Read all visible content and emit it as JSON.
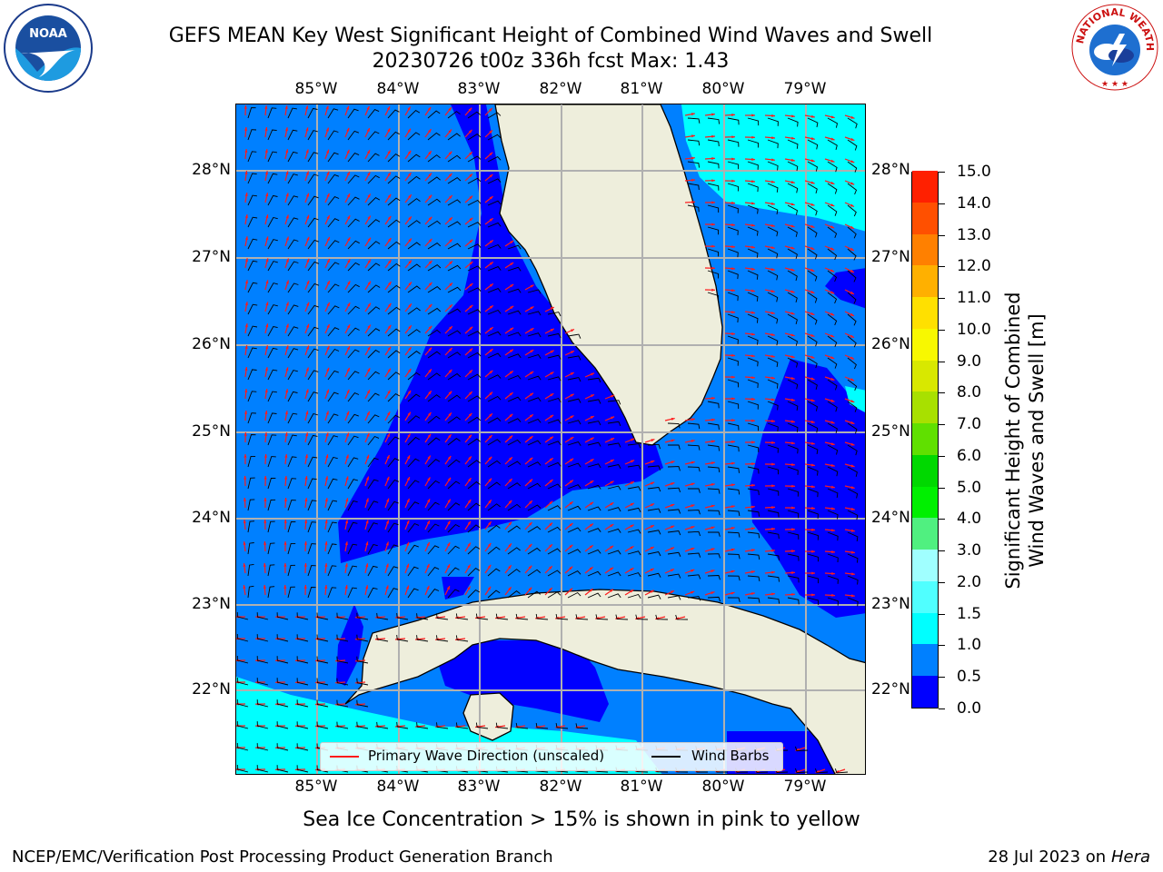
{
  "title": {
    "line1": "GEFS MEAN Key West Significant Height of Combined Wind Waves and Swell",
    "line2": "20230726 t00z 336h fcst   Max: 1.43"
  },
  "logos": {
    "left": {
      "name": "NOAA",
      "ring_text": "NATIONAL OCEANIC AND ATMOSPHERIC ADMINISTRATION",
      "bottom_text": "U.S. DEPARTMENT OF COMMERCE"
    },
    "right": {
      "ring_text": "NATIONAL WEATHER SERVICE"
    }
  },
  "map": {
    "lon_labels": [
      "85°W",
      "84°W",
      "83°W",
      "82°W",
      "81°W",
      "80°W",
      "79°W"
    ],
    "lat_labels": [
      "28°N",
      "27°N",
      "26°N",
      "25°N",
      "24°N",
      "23°N",
      "22°N"
    ],
    "colors": {
      "land": "#eeeedc",
      "gridline": "#b0b0b0",
      "wave_arrow": "#ff1a1a",
      "wind_barb": "#000000"
    }
  },
  "legend": {
    "wave_label": "Primary Wave Direction (unscaled)",
    "wind_label": "Wind Barbs"
  },
  "colorbar": {
    "title_line1": "Significant Height of Combined",
    "title_line2": "Wind Waves and Swell [m]",
    "tick_labels": [
      "0.0",
      "0.5",
      "1.0",
      "1.5",
      "2.0",
      "3.0",
      "4.0",
      "5.0",
      "6.0",
      "7.0",
      "8.0",
      "9.0",
      "10.0",
      "11.0",
      "12.0",
      "13.0",
      "14.0",
      "15.0"
    ],
    "colors": [
      "#0000ff",
      "#0080ff",
      "#00ffff",
      "#50ffff",
      "#a0ffff",
      "#50f080",
      "#00f000",
      "#00d800",
      "#60e000",
      "#a8e000",
      "#d8e800",
      "#f8f800",
      "#ffe000",
      "#ffb000",
      "#ff8000",
      "#ff5000",
      "#ff2000"
    ]
  },
  "subtitle": "Sea Ice Concentration > 15% is shown in pink to yellow",
  "footer": {
    "credit": "NCEP/EMC/Verification Post Processing Product Generation Branch",
    "date": "28 Jul 2023 on",
    "host": "Hera"
  }
}
